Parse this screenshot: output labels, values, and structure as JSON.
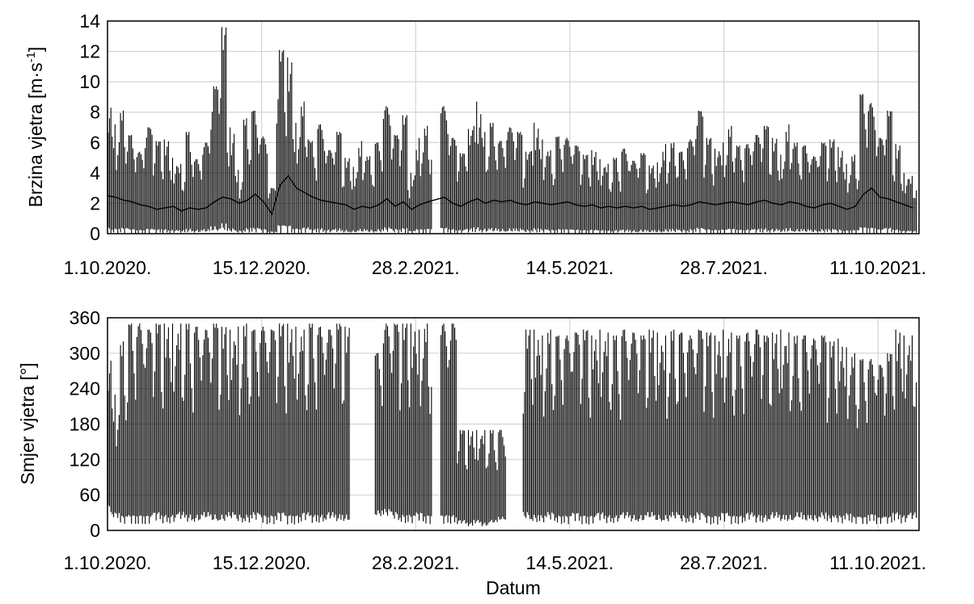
{
  "chart_data": [
    {
      "type": "line",
      "ylabel": "Brzina vjetra [m·s⁻¹]",
      "ylabel_parts": {
        "base": "Brzina vjetra [m·s",
        "sup": "-1",
        "tail": "]"
      },
      "xlabel": "",
      "ylim": [
        0,
        14
      ],
      "yticks": [
        0,
        2,
        4,
        6,
        8,
        10,
        12,
        14
      ],
      "xlim": [
        "2020-10-01",
        "2021-10-31"
      ],
      "xticks": [
        "1.10.2020.",
        "15.12.2020.",
        "28.2.2021.",
        "14.5.2021.",
        "28.7.2021.",
        "11.10.2021."
      ],
      "xtick_dates": [
        "2020-10-01",
        "2020-12-15",
        "2021-02-28",
        "2021-05-14",
        "2021-07-28",
        "2021-10-11"
      ],
      "grid": true,
      "series": [
        {
          "color": "#000000",
          "x": [
            "2020-10-01",
            "2020-10-05",
            "2020-10-09",
            "2020-10-13",
            "2020-10-17",
            "2020-10-21",
            "2020-10-25",
            "2020-10-29",
            "2020-11-02",
            "2020-11-06",
            "2020-11-10",
            "2020-11-14",
            "2020-11-18",
            "2020-11-22",
            "2020-11-26",
            "2020-11-30",
            "2020-12-04",
            "2020-12-08",
            "2020-12-12",
            "2020-12-16",
            "2020-12-20",
            "2020-12-24",
            "2020-12-28",
            "2021-01-01",
            "2021-01-05",
            "2021-01-09",
            "2021-01-13",
            "2021-01-17",
            "2021-01-21",
            "2021-01-25",
            "2021-01-29",
            "2021-02-02",
            "2021-02-06",
            "2021-02-10",
            "2021-02-14",
            "2021-02-18",
            "2021-02-22",
            "2021-02-26",
            "2021-03-02",
            "2021-03-06",
            "2021-03-10",
            "2021-03-14",
            "2021-03-18",
            "2021-03-22",
            "2021-03-26",
            "2021-03-30",
            "2021-04-03",
            "2021-04-07",
            "2021-04-11",
            "2021-04-15",
            "2021-04-19",
            "2021-04-23",
            "2021-04-27",
            "2021-05-01",
            "2021-05-05",
            "2021-05-09",
            "2021-05-13",
            "2021-05-17",
            "2021-05-21",
            "2021-05-25",
            "2021-05-29",
            "2021-06-02",
            "2021-06-06",
            "2021-06-10",
            "2021-06-14",
            "2021-06-18",
            "2021-06-22",
            "2021-06-26",
            "2021-06-30",
            "2021-07-04",
            "2021-07-08",
            "2021-07-12",
            "2021-07-16",
            "2021-07-20",
            "2021-07-24",
            "2021-07-28",
            "2021-08-01",
            "2021-08-05",
            "2021-08-09",
            "2021-08-13",
            "2021-08-17",
            "2021-08-21",
            "2021-08-25",
            "2021-08-29",
            "2021-09-02",
            "2021-09-06",
            "2021-09-10",
            "2021-09-14",
            "2021-09-18",
            "2021-09-22",
            "2021-09-26",
            "2021-09-30",
            "2021-10-04",
            "2021-10-08",
            "2021-10-12",
            "2021-10-16",
            "2021-10-20",
            "2021-10-24",
            "2021-10-28"
          ],
          "y_max": [
            8.7,
            7.2,
            8.1,
            6.5,
            5.4,
            7.0,
            6.1,
            6.2,
            5.0,
            4.6,
            6.7,
            4.9,
            6.0,
            9.7,
            13.6,
            7.0,
            4.2,
            7.6,
            8.1,
            6.4,
            3.0,
            12.1,
            11.6,
            7.3,
            8.7,
            6.1,
            7.2,
            5.5,
            6.7,
            5.0,
            4.4,
            6.1,
            5.1,
            6.0,
            8.4,
            6.5,
            7.8,
            4.0,
            6.3,
            7.1,
            null,
            8.4,
            6.3,
            5.3,
            6.9,
            8.7,
            6.7,
            7.3,
            6.1,
            7.0,
            6.7,
            5.4,
            7.3,
            6.2,
            5.5,
            6.4,
            6.3,
            5.8,
            5.2,
            5.5,
            4.9,
            4.6,
            5.0,
            5.6,
            4.8,
            5.3,
            4.5,
            4.7,
            5.9,
            6.0,
            5.4,
            6.2,
            8.1,
            6.3,
            5.6,
            6.0,
            7.1,
            5.8,
            5.9,
            6.5,
            7.1,
            6.3,
            5.2,
            7.2,
            6.0,
            5.8,
            5.1,
            6.0,
            6.2,
            5.7,
            4.6,
            5.2,
            9.2,
            8.6,
            6.3,
            8.1,
            5.9,
            4.0,
            3.8
          ],
          "y_mean": [
            2.5,
            2.4,
            2.2,
            2.1,
            1.9,
            1.8,
            1.6,
            1.7,
            1.8,
            1.5,
            1.7,
            1.6,
            1.7,
            2.1,
            2.4,
            2.3,
            2.0,
            2.2,
            2.6,
            2.1,
            1.3,
            3.2,
            3.8,
            3.0,
            2.7,
            2.4,
            2.2,
            2.1,
            2.0,
            1.9,
            1.6,
            1.8,
            1.7,
            1.9,
            2.3,
            1.8,
            2.1,
            1.6,
            1.9,
            2.1,
            null,
            2.4,
            2.0,
            1.8,
            2.1,
            2.3,
            2.0,
            2.2,
            2.1,
            2.2,
            2.0,
            1.9,
            2.1,
            2.0,
            1.9,
            2.0,
            2.1,
            1.9,
            1.8,
            1.9,
            1.7,
            1.8,
            1.7,
            1.8,
            1.7,
            1.8,
            1.6,
            1.7,
            1.8,
            1.9,
            1.8,
            1.9,
            2.1,
            2.0,
            1.9,
            2.0,
            2.1,
            2.0,
            1.9,
            2.1,
            2.2,
            2.0,
            1.9,
            2.1,
            2.0,
            1.8,
            1.7,
            1.9,
            2.0,
            1.8,
            1.6,
            1.8,
            2.6,
            3.0,
            2.4,
            2.3,
            2.1,
            1.9,
            1.7
          ],
          "y_min": 0
        }
      ]
    },
    {
      "type": "line",
      "ylabel": "Smjer vjetra [°]",
      "xlabel": "Datum",
      "ylim": [
        0,
        360
      ],
      "yticks": [
        0,
        60,
        120,
        180,
        240,
        300,
        360
      ],
      "xlim": [
        "2020-10-01",
        "2021-10-31"
      ],
      "xticks": [
        "1.10.2020.",
        "15.12.2020.",
        "28.2.2021.",
        "14.5.2021.",
        "28.7.2021.",
        "11.10.2021."
      ],
      "xtick_dates": [
        "2020-10-01",
        "2020-12-15",
        "2021-02-28",
        "2021-05-14",
        "2021-07-28",
        "2021-10-11"
      ],
      "grid": true,
      "series": [
        {
          "color": "#000000",
          "x": [
            "2020-10-01",
            "2020-10-05",
            "2020-10-09",
            "2020-10-13",
            "2020-10-17",
            "2020-10-21",
            "2020-10-25",
            "2020-10-29",
            "2020-11-02",
            "2020-11-06",
            "2020-11-10",
            "2020-11-14",
            "2020-11-18",
            "2020-11-22",
            "2020-11-26",
            "2020-11-30",
            "2020-12-04",
            "2020-12-08",
            "2020-12-12",
            "2020-12-16",
            "2020-12-20",
            "2020-12-24",
            "2020-12-28",
            "2021-01-01",
            "2021-01-05",
            "2021-01-09",
            "2021-01-13",
            "2021-01-17",
            "2021-01-21",
            "2021-01-25",
            "2021-01-29",
            "2021-02-02",
            "2021-02-06",
            "2021-02-10",
            "2021-02-14",
            "2021-02-18",
            "2021-02-22",
            "2021-02-26",
            "2021-03-02",
            "2021-03-06",
            "2021-03-10",
            "2021-03-14",
            "2021-03-18",
            "2021-03-22",
            "2021-03-26",
            "2021-03-30",
            "2021-04-03",
            "2021-04-07",
            "2021-04-11",
            "2021-04-15",
            "2021-04-19",
            "2021-04-23",
            "2021-04-27",
            "2021-05-01",
            "2021-05-05",
            "2021-05-09",
            "2021-05-13",
            "2021-05-17",
            "2021-05-21",
            "2021-05-25",
            "2021-05-29",
            "2021-06-02",
            "2021-06-06",
            "2021-06-10",
            "2021-06-14",
            "2021-06-18",
            "2021-06-22",
            "2021-06-26",
            "2021-06-30",
            "2021-07-04",
            "2021-07-08",
            "2021-07-12",
            "2021-07-16",
            "2021-07-20",
            "2021-07-24",
            "2021-07-28",
            "2021-08-01",
            "2021-08-05",
            "2021-08-09",
            "2021-08-13",
            "2021-08-17",
            "2021-08-21",
            "2021-08-25",
            "2021-08-29",
            "2021-09-02",
            "2021-09-06",
            "2021-09-10",
            "2021-09-14",
            "2021-09-18",
            "2021-09-22",
            "2021-09-26",
            "2021-09-30",
            "2021-10-04",
            "2021-10-08",
            "2021-10-12",
            "2021-10-16",
            "2021-10-20",
            "2021-10-24",
            "2021-10-28"
          ],
          "y_max": [
            300,
            230,
            320,
            350,
            350,
            340,
            350,
            350,
            350,
            350,
            350,
            345,
            340,
            350,
            345,
            340,
            345,
            350,
            340,
            345,
            340,
            350,
            350,
            345,
            340,
            350,
            345,
            340,
            350,
            345,
            null,
            null,
            null,
            300,
            350,
            350,
            350,
            350,
            340,
            350,
            null,
            350,
            350,
            170,
            170,
            170,
            170,
            170,
            170,
            null,
            null,
            340,
            340,
            330,
            340,
            330,
            330,
            335,
            340,
            330,
            340,
            335,
            330,
            340,
            335,
            330,
            340,
            335,
            330,
            340,
            335,
            330,
            340,
            335,
            330,
            340,
            335,
            330,
            335,
            340,
            330,
            335,
            340,
            335,
            330,
            330,
            325,
            330,
            320,
            325,
            310,
            300,
            290,
            290,
            280,
            300,
            340,
            330,
            330
          ],
          "y_min": [
            30,
            20,
            10,
            10,
            10,
            10,
            15,
            10,
            10,
            15,
            10,
            10,
            15,
            10,
            10,
            15,
            10,
            10,
            15,
            10,
            10,
            15,
            10,
            10,
            15,
            10,
            10,
            15,
            10,
            10,
            null,
            null,
            null,
            20,
            20,
            15,
            10,
            10,
            15,
            10,
            null,
            10,
            10,
            10,
            5,
            10,
            5,
            10,
            15,
            null,
            null,
            15,
            10,
            10,
            15,
            10,
            10,
            15,
            10,
            10,
            15,
            10,
            10,
            15,
            10,
            10,
            15,
            10,
            10,
            15,
            10,
            10,
            15,
            10,
            10,
            15,
            10,
            10,
            15,
            10,
            10,
            15,
            10,
            10,
            15,
            10,
            10,
            15,
            10,
            10,
            15,
            10,
            10,
            15,
            10,
            10,
            15,
            10,
            15
          ]
        }
      ]
    }
  ]
}
